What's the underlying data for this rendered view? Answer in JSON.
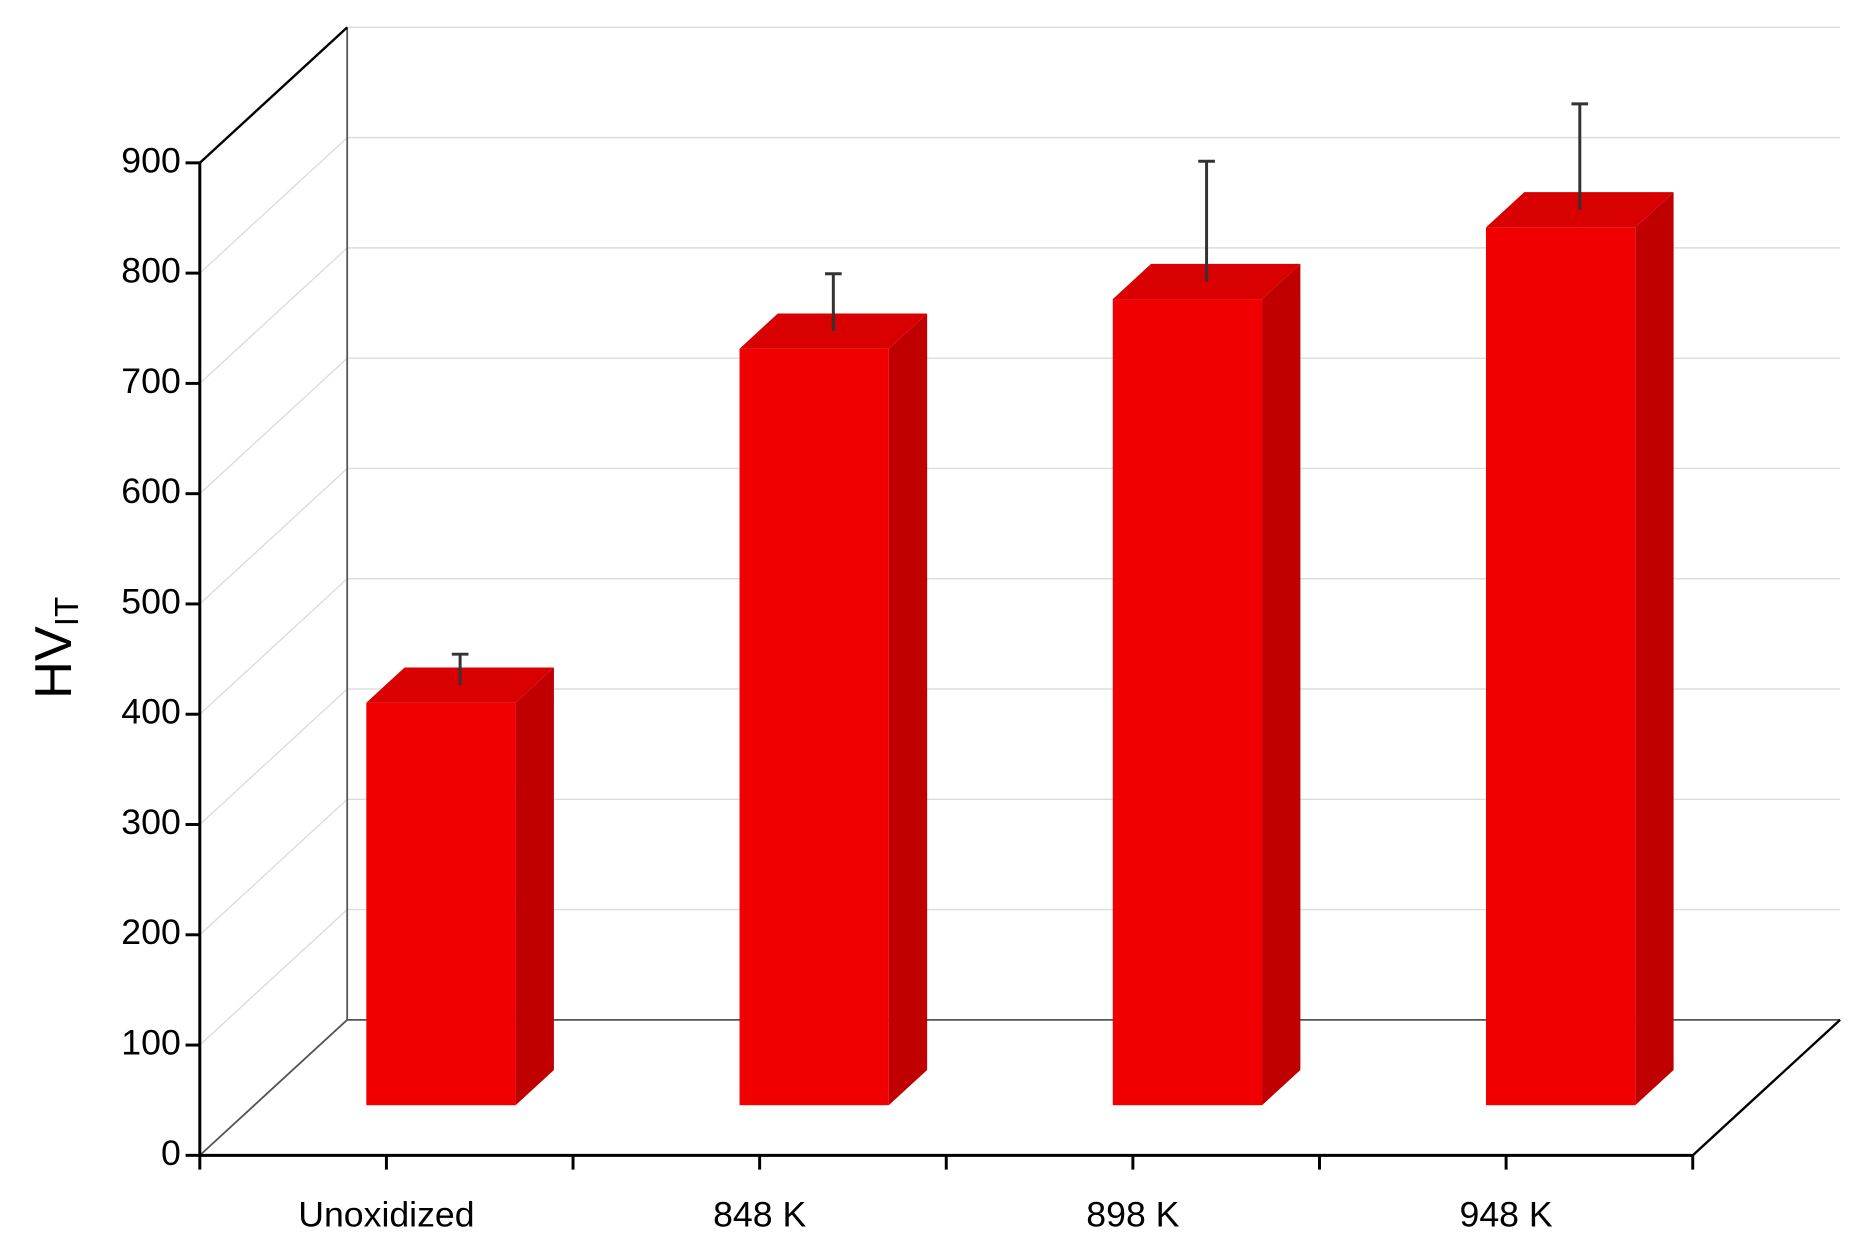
{
  "chart_data": {
    "type": "bar3d",
    "y_label": {
      "main": "HV",
      "sub": "IT"
    },
    "categories": [
      "Unoxidized",
      "848 K",
      "898 K",
      "948 K"
    ],
    "series": [
      {
        "color": "#f00000",
        "values": [
          365,
          686,
          731,
          796
        ],
        "errors": [
          28,
          52,
          109,
          96
        ]
      }
    ],
    "ylim": [
      0,
      900
    ],
    "yticks": [
      0,
      100,
      200,
      300,
      400,
      500,
      600,
      700,
      800,
      900
    ],
    "grid": true
  }
}
